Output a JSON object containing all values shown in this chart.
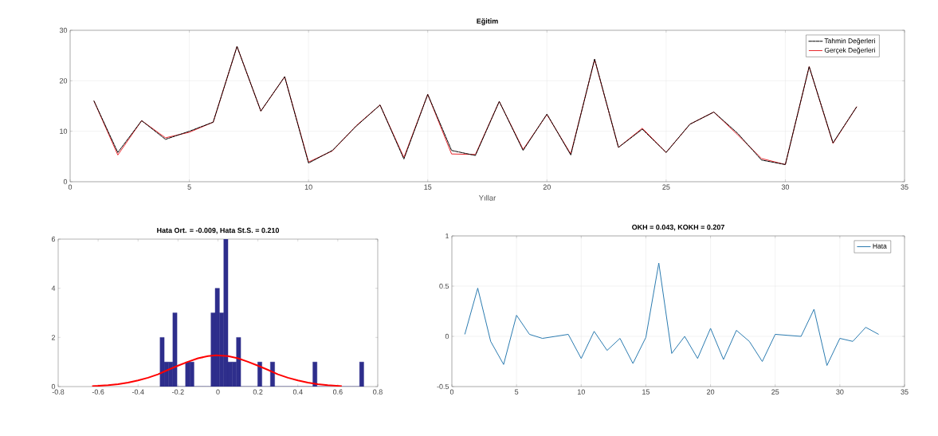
{
  "chart_data": [
    {
      "type": "line",
      "title": "Eğitim",
      "xlabel": "Yıllar",
      "x": [
        1,
        2,
        3,
        4,
        5,
        6,
        7,
        8,
        9,
        10,
        11,
        12,
        13,
        14,
        15,
        16,
        17,
        18,
        19,
        20,
        21,
        22,
        23,
        24,
        25,
        26,
        27,
        28,
        29,
        30,
        31,
        32,
        33
      ],
      "series": [
        {
          "name": "Tahmin Değerleri",
          "color": "#000000",
          "line_style": "dashed",
          "values": [
            16.0,
            5.8,
            12.1,
            8.4,
            10.0,
            11.8,
            26.8,
            14.0,
            20.8,
            3.7,
            6.2,
            11.0,
            15.2,
            4.5,
            17.3,
            6.2,
            5.2,
            15.9,
            6.2,
            13.4,
            5.3,
            24.3,
            6.8,
            10.4,
            5.8,
            11.4,
            13.8,
            9.6,
            4.3,
            3.4,
            22.8,
            7.7,
            14.9
          ]
        },
        {
          "name": "Gerçek Değerleri",
          "color": "#e8242a",
          "line_style": "solid",
          "values": [
            16.0,
            5.3,
            12.1,
            8.7,
            9.8,
            11.8,
            26.8,
            14.0,
            20.8,
            3.9,
            6.1,
            11.1,
            15.2,
            4.8,
            17.3,
            5.5,
            5.4,
            15.9,
            6.4,
            13.3,
            5.5,
            24.2,
            6.8,
            10.6,
            5.8,
            11.4,
            13.8,
            9.3,
            4.6,
            3.4,
            22.8,
            7.6,
            14.9
          ]
        }
      ],
      "xlim": [
        0,
        35
      ],
      "ylim": [
        0,
        30
      ],
      "xticks": [
        0,
        5,
        10,
        15,
        20,
        25,
        30,
        35
      ],
      "yticks": [
        0,
        10,
        20,
        30
      ],
      "grid": true,
      "legend": "top right"
    },
    {
      "type": "histogram",
      "title": "Hata Ort. = -0.009, Hata St.S. = 0.210",
      "color": "#2e2e8c",
      "bins": [
        -0.29,
        -0.269,
        -0.2475,
        -0.226,
        -0.205,
        -0.184,
        -0.1625,
        -0.141,
        -0.12,
        -0.099,
        -0.0775,
        -0.056,
        -0.035,
        -0.014,
        0.0075,
        0.029,
        0.05,
        0.071,
        0.0925,
        0.114,
        0.135,
        0.156,
        0.1775,
        0.199,
        0.22,
        0.241,
        0.2625,
        0.284,
        0.305,
        0.326,
        0.3475,
        0.369,
        0.39,
        0.411,
        0.4325,
        0.454,
        0.475,
        0.496,
        0.5175,
        0.539,
        0.56,
        0.581,
        0.6025,
        0.624,
        0.645,
        0.666,
        0.6875,
        0.709,
        0.73
      ],
      "values": [
        2,
        1,
        1,
        3,
        0,
        0,
        1,
        1,
        0,
        0,
        0,
        0,
        3,
        4,
        3,
        6,
        1,
        1,
        2,
        0,
        0,
        0,
        0,
        1,
        0,
        0,
        1,
        0,
        0,
        0,
        0,
        0,
        0,
        0,
        0,
        0,
        1,
        0,
        0,
        0,
        0,
        0,
        0,
        0,
        0,
        0,
        0,
        1
      ],
      "series": [
        {
          "type": "line",
          "color": "#ff0000",
          "x": [
            -0.63,
            -0.6,
            -0.55,
            -0.5,
            -0.45,
            -0.4,
            -0.35,
            -0.3,
            -0.25,
            -0.2,
            -0.15,
            -0.1,
            -0.05,
            -0.01,
            0.05,
            0.1,
            0.15,
            0.2,
            0.25,
            0.3,
            0.35,
            0.4,
            0.45,
            0.5,
            0.55,
            0.62
          ],
          "values": [
            0.02,
            0.03,
            0.06,
            0.1,
            0.16,
            0.25,
            0.36,
            0.5,
            0.68,
            0.85,
            1.01,
            1.15,
            1.24,
            1.27,
            1.24,
            1.15,
            1.01,
            0.85,
            0.68,
            0.5,
            0.36,
            0.25,
            0.16,
            0.1,
            0.06,
            0.02
          ]
        }
      ],
      "xlim": [
        -0.8,
        0.8
      ],
      "ylim": [
        0,
        6
      ],
      "xticks": [
        -0.8,
        -0.6,
        -0.4,
        -0.2,
        0,
        0.2,
        0.4,
        0.6,
        0.8
      ],
      "yticks": [
        0,
        2,
        4,
        6
      ]
    },
    {
      "type": "line",
      "title": "OKH = 0.043, KOKH = 0.207",
      "x": [
        1,
        2,
        3,
        4,
        5,
        6,
        7,
        8,
        9,
        10,
        11,
        12,
        13,
        14,
        15,
        16,
        17,
        18,
        19,
        20,
        21,
        22,
        23,
        24,
        25,
        26,
        27,
        28,
        29,
        30,
        31,
        32,
        33
      ],
      "series": [
        {
          "name": "Hata",
          "color": "#2a7ab0",
          "values": [
            0.02,
            0.48,
            -0.05,
            -0.28,
            0.21,
            0.02,
            -0.02,
            0.0,
            0.02,
            -0.22,
            0.05,
            -0.14,
            -0.02,
            -0.27,
            -0.01,
            0.73,
            -0.17,
            0.0,
            -0.22,
            0.08,
            -0.23,
            0.06,
            -0.05,
            -0.25,
            0.02,
            0.01,
            0.0,
            0.27,
            -0.29,
            -0.02,
            -0.05,
            0.09,
            0.02
          ]
        }
      ],
      "xlim": [
        0,
        35
      ],
      "ylim": [
        -0.5,
        1
      ],
      "xticks": [
        0,
        5,
        10,
        15,
        20,
        25,
        30,
        35
      ],
      "yticks": [
        -0.5,
        0,
        0.5,
        1
      ],
      "grid": true,
      "legend": "top right"
    }
  ]
}
